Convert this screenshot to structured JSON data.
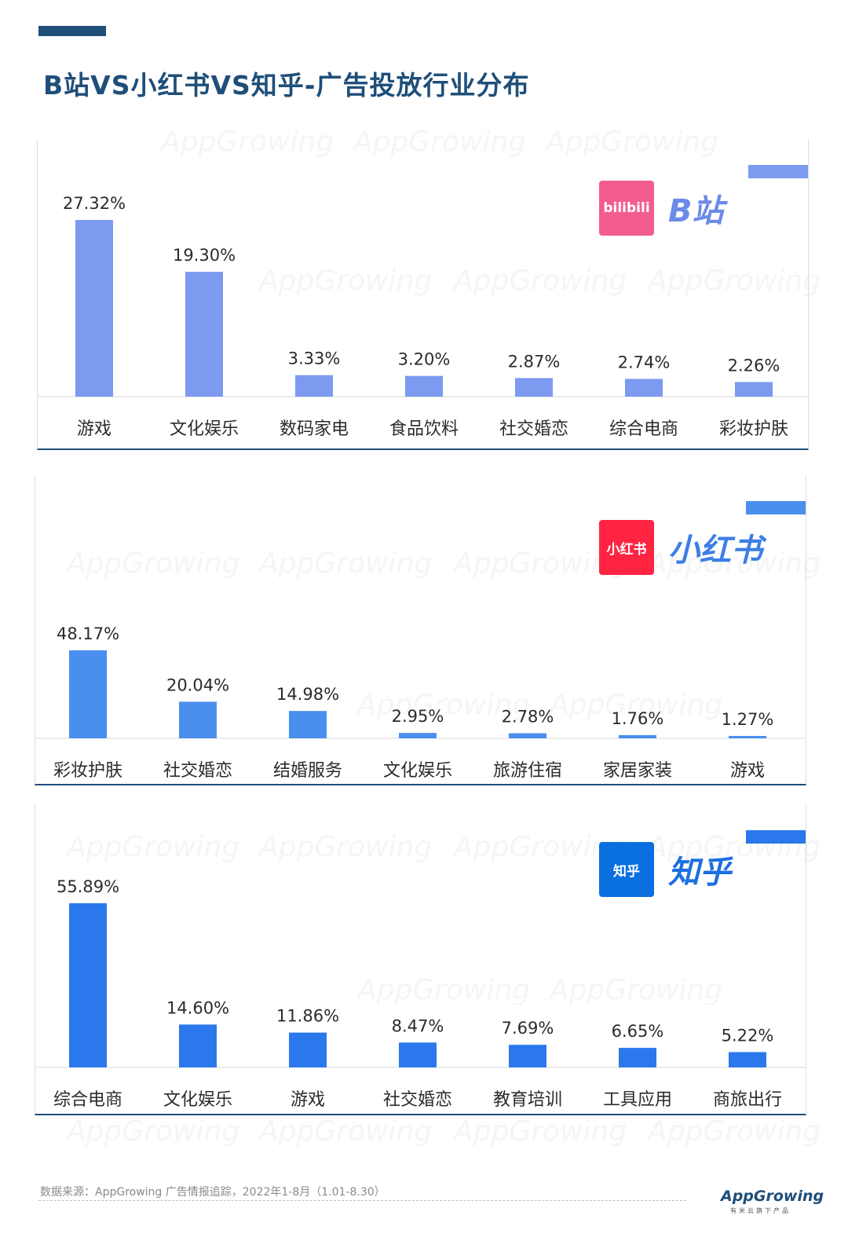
{
  "page": {
    "title": "B站VS小红书VS知乎-广告投放行业分布",
    "watermark_text": "AppGrowing",
    "footer_source": "数据来源：AppGrowing 广告情报追踪，2022年1-8月（1.01-8.30）",
    "footer_logo": "AppGrowing",
    "footer_logo_sub": "有米云旗下产品"
  },
  "panels": [
    {
      "brand_name": "B站",
      "logo_text": "bilibili",
      "logo_color": "#f25d8e",
      "brand_color": "#6c8ae8",
      "bar_color": "#7b9af0",
      "corner_color": "#7b9af0"
    },
    {
      "brand_name": "小红书",
      "logo_text": "小红书",
      "logo_color": "#ff2442",
      "brand_color": "#3d7ee6",
      "bar_color": "#4a8fee",
      "corner_color": "#4a8fee"
    },
    {
      "brand_name": "知乎",
      "logo_text": "知乎",
      "logo_color": "#0a6fdf",
      "brand_color": "#1c6fe0",
      "bar_color": "#2a78ec",
      "corner_color": "#2a78ec"
    }
  ],
  "chart_data": [
    {
      "type": "bar",
      "title": "B站",
      "categories": [
        "游戏",
        "文化娱乐",
        "数码家电",
        "食品饮料",
        "社交婚恋",
        "综合电商",
        "彩妆护肤"
      ],
      "values": [
        27.32,
        19.3,
        3.33,
        3.2,
        2.87,
        2.74,
        2.26
      ],
      "value_labels": [
        "27.32%",
        "19.30%",
        "3.33%",
        "3.20%",
        "2.87%",
        "2.74%",
        "2.26%"
      ],
      "unit": "%",
      "grid": false
    },
    {
      "type": "bar",
      "title": "小红书",
      "categories": [
        "彩妆护肤",
        "社交婚恋",
        "结婚服务",
        "文化娱乐",
        "旅游住宿",
        "家居家装",
        "游戏"
      ],
      "values": [
        48.17,
        20.04,
        14.98,
        2.95,
        2.78,
        1.76,
        1.27
      ],
      "value_labels": [
        "48.17%",
        "20.04%",
        "14.98%",
        "2.95%",
        "2.78%",
        "1.76%",
        "1.27%"
      ],
      "unit": "%",
      "grid": false
    },
    {
      "type": "bar",
      "title": "知乎",
      "categories": [
        "综合电商",
        "文化娱乐",
        "游戏",
        "社交婚恋",
        "教育培训",
        "工具应用",
        "商旅出行"
      ],
      "values": [
        55.89,
        14.6,
        11.86,
        8.47,
        7.69,
        6.65,
        5.22
      ],
      "value_labels": [
        "55.89%",
        "14.60%",
        "11.86%",
        "8.47%",
        "7.69%",
        "6.65%",
        "5.22%"
      ],
      "unit": "%",
      "grid": false
    }
  ]
}
